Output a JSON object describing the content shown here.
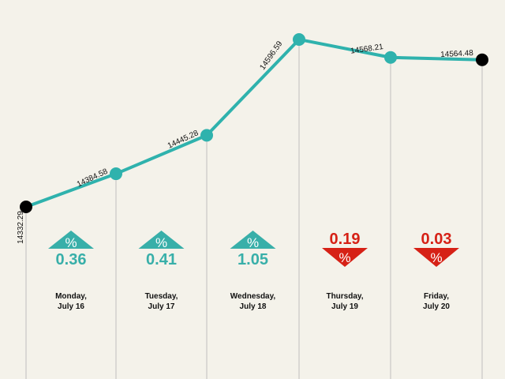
{
  "chart_data": {
    "type": "line",
    "title": "",
    "xlabel": "",
    "ylabel": "",
    "ylim": [
      14250,
      14640
    ],
    "grid": false,
    "legend": "none",
    "days": [
      {
        "line1": "",
        "line2": ""
      },
      {
        "line1": "Monday,",
        "line2": "July 16"
      },
      {
        "line1": "Tuesday,",
        "line2": "July 17"
      },
      {
        "line1": "Wednesday,",
        "line2": "July 18"
      },
      {
        "line1": "Thursday,",
        "line2": "July 19"
      },
      {
        "line1": "Friday,",
        "line2": "July 20"
      }
    ],
    "series": [
      {
        "values": [
          14332.29,
          14384.58,
          14445.28,
          14596.59,
          14568.21,
          14564.48
        ]
      }
    ],
    "data_labels": [
      "14332.29",
      "14384.58",
      "14445.28",
      "14596.59",
      "14568.21",
      "14564.48"
    ],
    "changes": [
      {
        "value": "0.36",
        "direction": "up"
      },
      {
        "value": "0.41",
        "direction": "up"
      },
      {
        "value": "1.05",
        "direction": "up"
      },
      {
        "value": "0.19",
        "direction": "down"
      },
      {
        "value": "0.03",
        "direction": "down"
      }
    ],
    "percent_symbol": "%",
    "colors": {
      "line": "#2fb2ad",
      "up": "#38afa9",
      "down": "#d62116",
      "endpoint": "#000000",
      "drop_line": "#bfbfbf",
      "background": "#f4f2ea"
    }
  }
}
